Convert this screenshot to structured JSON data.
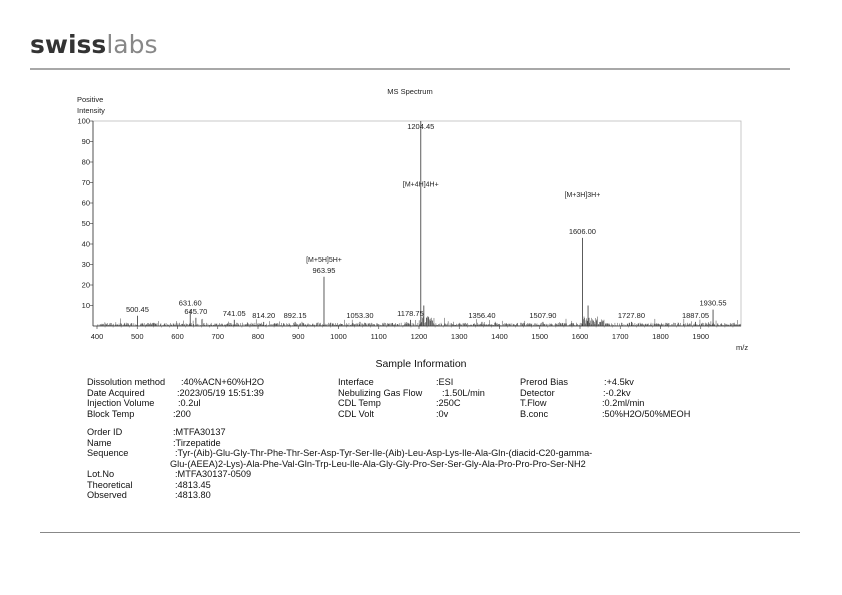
{
  "logo": {
    "part1": "swiss",
    "part2": "labs"
  },
  "chart_data": {
    "type": "bar",
    "title": "MS Spectrum",
    "ylabel_line1": "Positive",
    "ylabel_line2": "Intensity",
    "xlabel": "m/z",
    "xlim": [
      400,
      2000
    ],
    "ylim": [
      0,
      100
    ],
    "xticks": [
      400,
      500,
      600,
      700,
      800,
      900,
      1000,
      1100,
      1200,
      1300,
      1400,
      1500,
      1600,
      1700,
      1800,
      1900
    ],
    "yticks": [
      10,
      20,
      30,
      40,
      50,
      60,
      70,
      80,
      90,
      100
    ],
    "grid": false,
    "peaks": [
      {
        "mz": 500.45,
        "intensity": 5,
        "label": "500.45"
      },
      {
        "mz": 631.6,
        "intensity": 8,
        "label": "631.60"
      },
      {
        "mz": 645.7,
        "intensity": 4,
        "label": "645.70"
      },
      {
        "mz": 741.05,
        "intensity": 3,
        "label": "741.05"
      },
      {
        "mz": 814.2,
        "intensity": 2,
        "label": "814.20"
      },
      {
        "mz": 892.15,
        "intensity": 2,
        "label": "892.15"
      },
      {
        "mz": 963.95,
        "intensity": 24,
        "label": "963.95",
        "annotation": "[M+5H]5H+"
      },
      {
        "mz": 1053.3,
        "intensity": 2,
        "label": "1053.30"
      },
      {
        "mz": 1178.75,
        "intensity": 3,
        "label": "1178.75"
      },
      {
        "mz": 1204.45,
        "intensity": 100,
        "label": "1204.45",
        "annotation": "[M+4H]4H+"
      },
      {
        "mz": 1212.0,
        "intensity": 10,
        "label": ""
      },
      {
        "mz": 1356.4,
        "intensity": 2,
        "label": "1356.40"
      },
      {
        "mz": 1507.9,
        "intensity": 2,
        "label": "1507.90"
      },
      {
        "mz": 1606.0,
        "intensity": 43,
        "label": "1606.00",
        "annotation": "[M+3H]3H+"
      },
      {
        "mz": 1620.0,
        "intensity": 10,
        "label": ""
      },
      {
        "mz": 1727.8,
        "intensity": 2,
        "label": "1727.80"
      },
      {
        "mz": 1887.05,
        "intensity": 2,
        "label": "1887.05"
      },
      {
        "mz": 1930.55,
        "intensity": 8,
        "label": "1930.55"
      }
    ]
  },
  "sample_info": {
    "title": "Sample Information",
    "col1": [
      {
        "label": "Dissolution method",
        "value": ":40%ACN+60%H2O"
      },
      {
        "label": "Date Acquired",
        "value": ":2023/05/19 15:51:39"
      },
      {
        "label": "Injection Volume",
        "value": ":0.2ul"
      },
      {
        "label": "Block Temp",
        "value": ":200"
      }
    ],
    "col2": [
      {
        "label": "Interface",
        "value": ":ESI"
      },
      {
        "label": "Nebulizing Gas Flow",
        "value": ":1.50L/min"
      },
      {
        "label": "CDL Temp",
        "value": ":250C"
      },
      {
        "label": "CDL Volt",
        "value": ":0v"
      }
    ],
    "col3": [
      {
        "label": "Prerod Bias",
        "value": ":+4.5kv"
      },
      {
        "label": "Detector",
        "value": ":-0.2kv"
      },
      {
        "label": "T.Flow",
        "value": ":0.2ml/min"
      },
      {
        "label": "B.conc",
        "value": ":50%H2O/50%MEOH"
      }
    ],
    "order_id": {
      "label": "Order  ID",
      "value": ":MTFA30137"
    },
    "name": {
      "label": "Name",
      "value": ":Tirzepatide"
    },
    "sequence": {
      "label": "Sequence",
      "value_line1": ":Tyr-(Aib)-Glu-Gly-Thr-Phe-Thr-Ser-Asp-Tyr-Ser-Ile-(Aib)-Leu-Asp-Lys-Ile-Ala-Gln-(diacid-C20-gamma-",
      "value_line2": "Glu-(AEEA)2-Lys)-Ala-Phe-Val-Gln-Trp-Leu-Ile-Ala-Gly-Gly-Pro-Ser-Ser-Gly-Ala-Pro-Pro-Pro-Ser-NH2"
    },
    "lot_no": {
      "label": "Lot.No",
      "value": ":MTFA30137-0509"
    },
    "theoretical": {
      "label": "Theoretical",
      "value": ":4813.45"
    },
    "observed": {
      "label": "Observed",
      "value": ":4813.80"
    }
  }
}
